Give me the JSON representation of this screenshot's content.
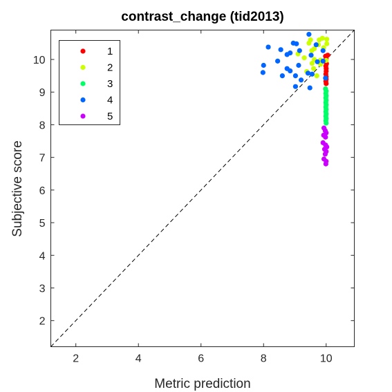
{
  "chart_data": {
    "type": "scatter",
    "title": "contrast_change (tid2013)",
    "xlabel": "Metric prediction",
    "ylabel": "Subjective score",
    "xlim": [
      1.2,
      10.9
    ],
    "ylim": [
      1.2,
      10.9
    ],
    "xticks": [
      "2",
      "4",
      "6",
      "8",
      "10"
    ],
    "yticks": [
      "2",
      "3",
      "4",
      "5",
      "6",
      "7",
      "8",
      "9",
      "10"
    ],
    "grid": false,
    "legend_position": "top-left",
    "reference_line": {
      "style": "dashed",
      "from": [
        1.2,
        1.2
      ],
      "to": [
        10.9,
        10.9
      ]
    },
    "series": [
      {
        "name": "1",
        "color": "#ff0000",
        "points": [
          [
            9.98,
            10.1
          ],
          [
            10.0,
            10.02
          ],
          [
            9.99,
            9.94
          ],
          [
            10.01,
            9.87
          ],
          [
            9.99,
            9.8
          ],
          [
            10.0,
            9.72
          ],
          [
            10.0,
            9.64
          ],
          [
            9.99,
            9.55
          ],
          [
            10.0,
            9.47
          ],
          [
            10.0,
            9.4
          ],
          [
            9.99,
            9.33
          ],
          [
            10.0,
            9.26
          ],
          [
            10.05,
            10.13
          ]
        ]
      },
      {
        "name": "2",
        "color": "#ccff00",
        "points": [
          [
            9.5,
            10.6
          ],
          [
            9.78,
            10.6
          ],
          [
            9.88,
            10.65
          ],
          [
            10.02,
            10.62
          ],
          [
            9.45,
            10.5
          ],
          [
            9.75,
            10.45
          ],
          [
            10.02,
            10.48
          ],
          [
            9.62,
            10.33
          ],
          [
            9.92,
            10.36
          ],
          [
            9.54,
            10.27
          ],
          [
            9.1,
            10.17
          ],
          [
            9.3,
            10.05
          ],
          [
            9.62,
            10.0
          ],
          [
            9.82,
            9.98
          ],
          [
            9.55,
            9.88
          ],
          [
            9.82,
            9.85
          ],
          [
            10.0,
            9.97
          ],
          [
            9.6,
            9.72
          ],
          [
            9.38,
            9.63
          ],
          [
            9.7,
            9.5
          ]
        ]
      },
      {
        "name": "3",
        "color": "#00ff66",
        "points": [
          [
            9.98,
            9.1
          ],
          [
            10.0,
            9.03
          ],
          [
            9.99,
            8.96
          ],
          [
            10.0,
            8.89
          ],
          [
            9.99,
            8.82
          ],
          [
            10.0,
            8.75
          ],
          [
            9.99,
            8.68
          ],
          [
            10.0,
            8.61
          ],
          [
            9.99,
            8.54
          ],
          [
            10.0,
            8.47
          ],
          [
            9.99,
            8.4
          ],
          [
            10.0,
            8.33
          ],
          [
            9.99,
            8.26
          ],
          [
            10.0,
            8.19
          ],
          [
            9.99,
            8.12
          ],
          [
            10.0,
            8.05
          ]
        ]
      },
      {
        "name": "4",
        "color": "#0066ff",
        "points": [
          [
            9.45,
            10.77
          ],
          [
            8.95,
            10.5
          ],
          [
            9.05,
            10.48
          ],
          [
            9.68,
            10.45
          ],
          [
            8.15,
            10.38
          ],
          [
            8.55,
            10.3
          ],
          [
            9.15,
            10.27
          ],
          [
            9.9,
            10.27
          ],
          [
            8.85,
            10.2
          ],
          [
            8.75,
            10.15
          ],
          [
            9.52,
            10.13
          ],
          [
            8.45,
            9.95
          ],
          [
            9.72,
            9.93
          ],
          [
            9.9,
            9.95
          ],
          [
            8.0,
            9.82
          ],
          [
            8.75,
            9.72
          ],
          [
            8.85,
            9.65
          ],
          [
            9.12,
            9.82
          ],
          [
            7.98,
            9.6
          ],
          [
            9.42,
            9.58
          ],
          [
            9.55,
            9.55
          ],
          [
            8.6,
            9.5
          ],
          [
            9.02,
            9.5
          ],
          [
            9.2,
            9.37
          ],
          [
            9.02,
            9.17
          ],
          [
            9.48,
            9.13
          ],
          [
            9.98,
            9.43
          ]
        ]
      },
      {
        "name": "5",
        "color": "#cc00ff",
        "points": [
          [
            9.93,
            7.9
          ],
          [
            9.97,
            7.82
          ],
          [
            10.0,
            7.75
          ],
          [
            9.92,
            7.68
          ],
          [
            9.98,
            7.62
          ],
          [
            9.9,
            7.45
          ],
          [
            9.98,
            7.38
          ],
          [
            10.02,
            7.32
          ],
          [
            9.95,
            7.25
          ],
          [
            10.0,
            7.18
          ],
          [
            9.97,
            7.1
          ],
          [
            9.93,
            6.95
          ],
          [
            10.0,
            6.88
          ],
          [
            9.99,
            6.8
          ]
        ]
      }
    ]
  }
}
